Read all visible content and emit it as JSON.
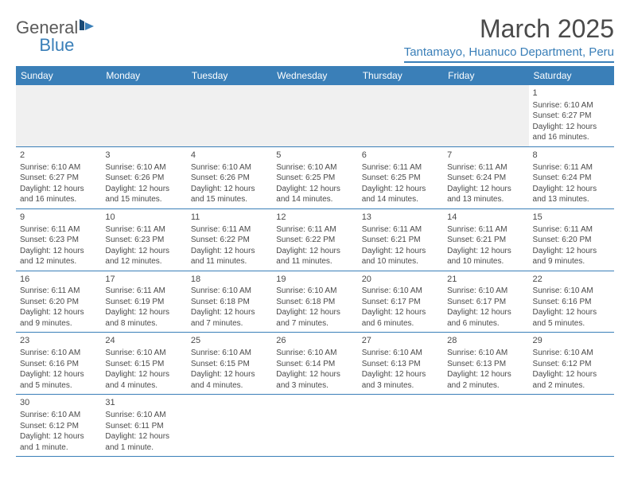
{
  "logo": {
    "general": "General",
    "blue": "Blue"
  },
  "title": "March 2025",
  "location": "Tantamayo, Huanuco Department, Peru",
  "colors": {
    "brand_blue": "#3a7fb8",
    "text": "#4a4a4a",
    "header_bg": "#3a7fb8",
    "header_fg": "#ffffff",
    "empty_bg": "#f0f0f0",
    "border": "#3a7fb8"
  },
  "dayHeaders": [
    "Sunday",
    "Monday",
    "Tuesday",
    "Wednesday",
    "Thursday",
    "Friday",
    "Saturday"
  ],
  "weeks": [
    [
      null,
      null,
      null,
      null,
      null,
      null,
      {
        "n": "1",
        "sr": "Sunrise: 6:10 AM",
        "ss": "Sunset: 6:27 PM",
        "d1": "Daylight: 12 hours",
        "d2": "and 16 minutes."
      }
    ],
    [
      {
        "n": "2",
        "sr": "Sunrise: 6:10 AM",
        "ss": "Sunset: 6:27 PM",
        "d1": "Daylight: 12 hours",
        "d2": "and 16 minutes."
      },
      {
        "n": "3",
        "sr": "Sunrise: 6:10 AM",
        "ss": "Sunset: 6:26 PM",
        "d1": "Daylight: 12 hours",
        "d2": "and 15 minutes."
      },
      {
        "n": "4",
        "sr": "Sunrise: 6:10 AM",
        "ss": "Sunset: 6:26 PM",
        "d1": "Daylight: 12 hours",
        "d2": "and 15 minutes."
      },
      {
        "n": "5",
        "sr": "Sunrise: 6:10 AM",
        "ss": "Sunset: 6:25 PM",
        "d1": "Daylight: 12 hours",
        "d2": "and 14 minutes."
      },
      {
        "n": "6",
        "sr": "Sunrise: 6:11 AM",
        "ss": "Sunset: 6:25 PM",
        "d1": "Daylight: 12 hours",
        "d2": "and 14 minutes."
      },
      {
        "n": "7",
        "sr": "Sunrise: 6:11 AM",
        "ss": "Sunset: 6:24 PM",
        "d1": "Daylight: 12 hours",
        "d2": "and 13 minutes."
      },
      {
        "n": "8",
        "sr": "Sunrise: 6:11 AM",
        "ss": "Sunset: 6:24 PM",
        "d1": "Daylight: 12 hours",
        "d2": "and 13 minutes."
      }
    ],
    [
      {
        "n": "9",
        "sr": "Sunrise: 6:11 AM",
        "ss": "Sunset: 6:23 PM",
        "d1": "Daylight: 12 hours",
        "d2": "and 12 minutes."
      },
      {
        "n": "10",
        "sr": "Sunrise: 6:11 AM",
        "ss": "Sunset: 6:23 PM",
        "d1": "Daylight: 12 hours",
        "d2": "and 12 minutes."
      },
      {
        "n": "11",
        "sr": "Sunrise: 6:11 AM",
        "ss": "Sunset: 6:22 PM",
        "d1": "Daylight: 12 hours",
        "d2": "and 11 minutes."
      },
      {
        "n": "12",
        "sr": "Sunrise: 6:11 AM",
        "ss": "Sunset: 6:22 PM",
        "d1": "Daylight: 12 hours",
        "d2": "and 11 minutes."
      },
      {
        "n": "13",
        "sr": "Sunrise: 6:11 AM",
        "ss": "Sunset: 6:21 PM",
        "d1": "Daylight: 12 hours",
        "d2": "and 10 minutes."
      },
      {
        "n": "14",
        "sr": "Sunrise: 6:11 AM",
        "ss": "Sunset: 6:21 PM",
        "d1": "Daylight: 12 hours",
        "d2": "and 10 minutes."
      },
      {
        "n": "15",
        "sr": "Sunrise: 6:11 AM",
        "ss": "Sunset: 6:20 PM",
        "d1": "Daylight: 12 hours",
        "d2": "and 9 minutes."
      }
    ],
    [
      {
        "n": "16",
        "sr": "Sunrise: 6:11 AM",
        "ss": "Sunset: 6:20 PM",
        "d1": "Daylight: 12 hours",
        "d2": "and 9 minutes."
      },
      {
        "n": "17",
        "sr": "Sunrise: 6:11 AM",
        "ss": "Sunset: 6:19 PM",
        "d1": "Daylight: 12 hours",
        "d2": "and 8 minutes."
      },
      {
        "n": "18",
        "sr": "Sunrise: 6:10 AM",
        "ss": "Sunset: 6:18 PM",
        "d1": "Daylight: 12 hours",
        "d2": "and 7 minutes."
      },
      {
        "n": "19",
        "sr": "Sunrise: 6:10 AM",
        "ss": "Sunset: 6:18 PM",
        "d1": "Daylight: 12 hours",
        "d2": "and 7 minutes."
      },
      {
        "n": "20",
        "sr": "Sunrise: 6:10 AM",
        "ss": "Sunset: 6:17 PM",
        "d1": "Daylight: 12 hours",
        "d2": "and 6 minutes."
      },
      {
        "n": "21",
        "sr": "Sunrise: 6:10 AM",
        "ss": "Sunset: 6:17 PM",
        "d1": "Daylight: 12 hours",
        "d2": "and 6 minutes."
      },
      {
        "n": "22",
        "sr": "Sunrise: 6:10 AM",
        "ss": "Sunset: 6:16 PM",
        "d1": "Daylight: 12 hours",
        "d2": "and 5 minutes."
      }
    ],
    [
      {
        "n": "23",
        "sr": "Sunrise: 6:10 AM",
        "ss": "Sunset: 6:16 PM",
        "d1": "Daylight: 12 hours",
        "d2": "and 5 minutes."
      },
      {
        "n": "24",
        "sr": "Sunrise: 6:10 AM",
        "ss": "Sunset: 6:15 PM",
        "d1": "Daylight: 12 hours",
        "d2": "and 4 minutes."
      },
      {
        "n": "25",
        "sr": "Sunrise: 6:10 AM",
        "ss": "Sunset: 6:15 PM",
        "d1": "Daylight: 12 hours",
        "d2": "and 4 minutes."
      },
      {
        "n": "26",
        "sr": "Sunrise: 6:10 AM",
        "ss": "Sunset: 6:14 PM",
        "d1": "Daylight: 12 hours",
        "d2": "and 3 minutes."
      },
      {
        "n": "27",
        "sr": "Sunrise: 6:10 AM",
        "ss": "Sunset: 6:13 PM",
        "d1": "Daylight: 12 hours",
        "d2": "and 3 minutes."
      },
      {
        "n": "28",
        "sr": "Sunrise: 6:10 AM",
        "ss": "Sunset: 6:13 PM",
        "d1": "Daylight: 12 hours",
        "d2": "and 2 minutes."
      },
      {
        "n": "29",
        "sr": "Sunrise: 6:10 AM",
        "ss": "Sunset: 6:12 PM",
        "d1": "Daylight: 12 hours",
        "d2": "and 2 minutes."
      }
    ],
    [
      {
        "n": "30",
        "sr": "Sunrise: 6:10 AM",
        "ss": "Sunset: 6:12 PM",
        "d1": "Daylight: 12 hours",
        "d2": "and 1 minute."
      },
      {
        "n": "31",
        "sr": "Sunrise: 6:10 AM",
        "ss": "Sunset: 6:11 PM",
        "d1": "Daylight: 12 hours",
        "d2": "and 1 minute."
      },
      null,
      null,
      null,
      null,
      null
    ]
  ]
}
